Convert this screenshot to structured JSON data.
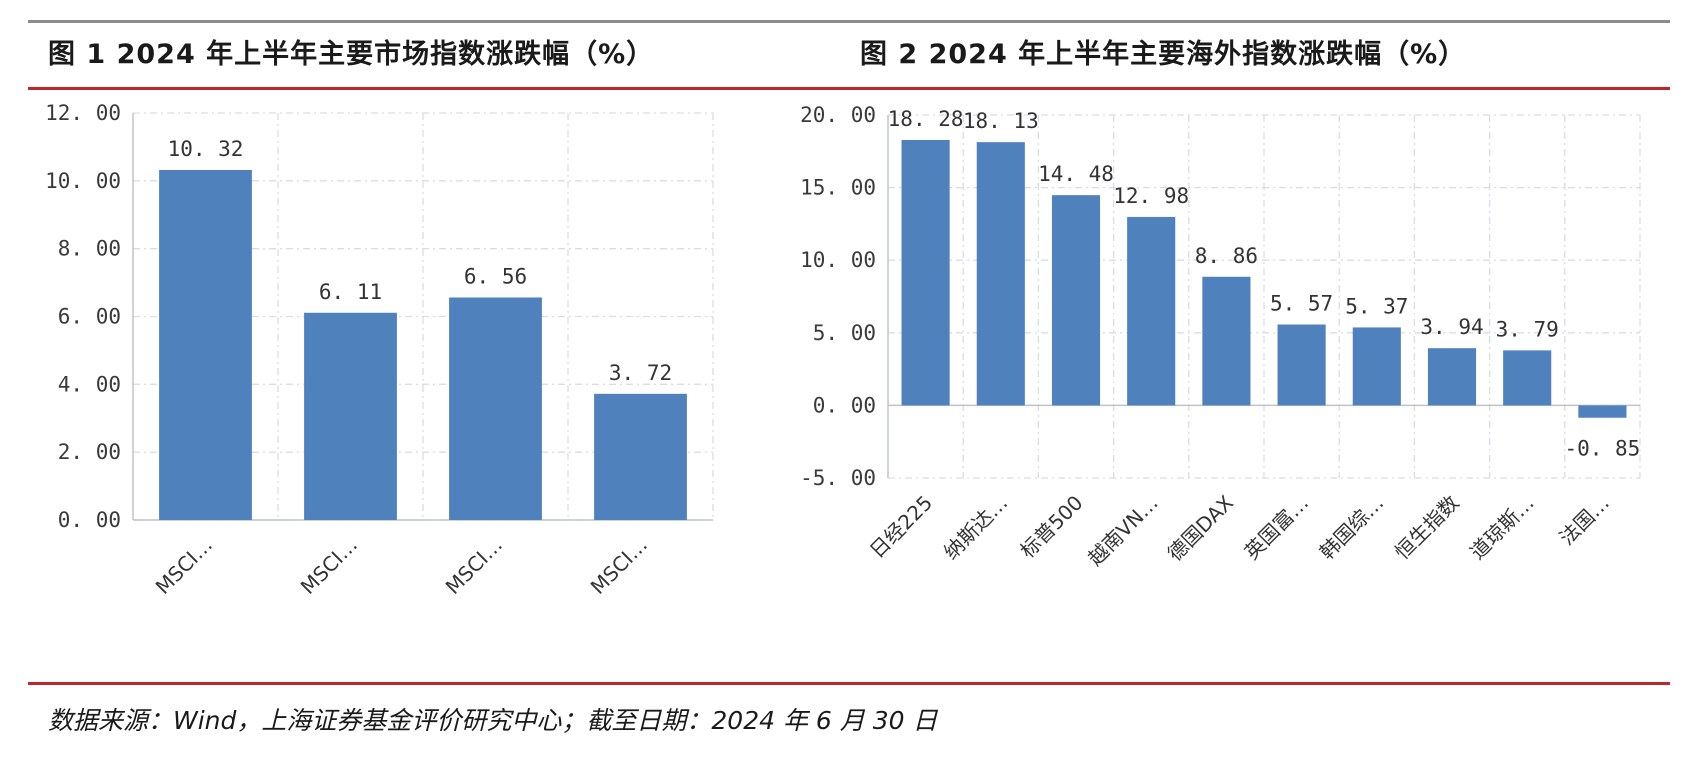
{
  "figures": {
    "fig1": {
      "title": "图 1 2024 年上半年主要市场指数涨跌幅（%）"
    },
    "fig2": {
      "title": "图 2 2024 年上半年主要海外指数涨跌幅（%）"
    }
  },
  "source_note": "数据来源：Wind，上海证券基金评价研究中心；截至日期：2024 年 6 月 30 日",
  "colors": {
    "bar": "#4f81bd",
    "rule_red": "#c0262c",
    "rule_gray": "#8c8c8c"
  },
  "chart_data": [
    {
      "type": "bar",
      "title": "图 1 2024 年上半年主要市场指数涨跌幅（%）",
      "categories": [
        "MSCI…",
        "MSCI…",
        "MSCI…",
        "MSCI…"
      ],
      "values": [
        10.32,
        6.11,
        6.56,
        3.72
      ],
      "value_labels": [
        "10. 32",
        "6. 11",
        "6. 56",
        "3. 72"
      ],
      "y_ticks": [
        "0. 00",
        "2. 00",
        "4. 00",
        "6. 00",
        "8. 00",
        "10. 00",
        "12. 00"
      ],
      "ylim": [
        0,
        12
      ],
      "xlabel": "",
      "ylabel": "",
      "grid": true,
      "legend": "none"
    },
    {
      "type": "bar",
      "title": "图 2 2024 年上半年主要海外指数涨跌幅（%）",
      "categories": [
        "日经225",
        "纳斯达…",
        "标普500",
        "越南VN…",
        "德国DAX",
        "英国富…",
        "韩国综…",
        "恒生指数",
        "道琼斯…",
        "法国…"
      ],
      "values": [
        18.28,
        18.13,
        14.48,
        12.98,
        8.86,
        5.57,
        5.37,
        3.94,
        3.79,
        -0.85
      ],
      "value_labels": [
        "18. 28",
        "18. 13",
        "14. 48",
        "12. 98",
        "8. 86",
        "5. 57",
        "5. 37",
        "3. 94",
        "3. 79",
        "-0. 85"
      ],
      "y_ticks": [
        "-5. 00",
        "0. 00",
        "5. 00",
        "10. 00",
        "15. 00",
        "20. 00"
      ],
      "ylim": [
        -5,
        20
      ],
      "xlabel": "",
      "ylabel": "",
      "grid": true,
      "legend": "none"
    }
  ]
}
